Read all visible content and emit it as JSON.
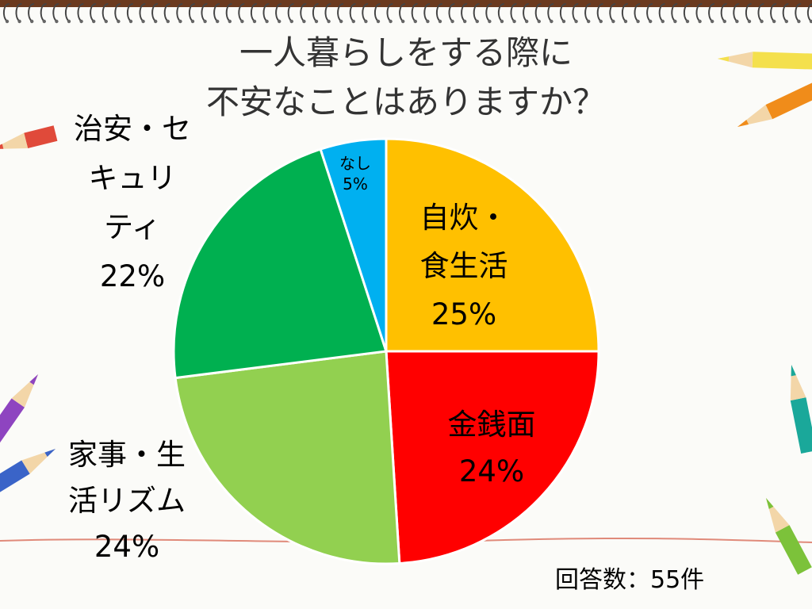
{
  "slide": {
    "title_line1": "一人暮らしをする際に",
    "title_line2": "不安なことはありますか？",
    "footnote": "回答数：55件",
    "colors": {
      "background": "#fbfbf8",
      "spiral_bar": "#6b3a1f",
      "baseline": "#e08a7a"
    }
  },
  "chart_data": {
    "type": "pie",
    "title": "一人暮らしをする際に不安なことはありますか？",
    "start_angle_deg": 0,
    "direction": "clockwise",
    "slices": [
      {
        "label_lines": [
          "自炊・",
          "食生活"
        ],
        "value_label": "25%",
        "value": 25,
        "color": "#ffc000"
      },
      {
        "label_lines": [
          "金銭面"
        ],
        "value_label": "24%",
        "value": 24,
        "color": "#ff0000"
      },
      {
        "label_lines": [
          "家事・生",
          "活リズム"
        ],
        "value_label": "24%",
        "value": 24,
        "color": "#92d050"
      },
      {
        "label_lines": [
          "治安・セ",
          "キュリ",
          "ティ"
        ],
        "value_label": "22%",
        "value": 22,
        "color": "#00b050"
      },
      {
        "label_lines": [
          "なし"
        ],
        "value_label": "5%",
        "value": 5,
        "color": "#00b0f0"
      }
    ],
    "legend": "none",
    "total_responses": "55件"
  }
}
